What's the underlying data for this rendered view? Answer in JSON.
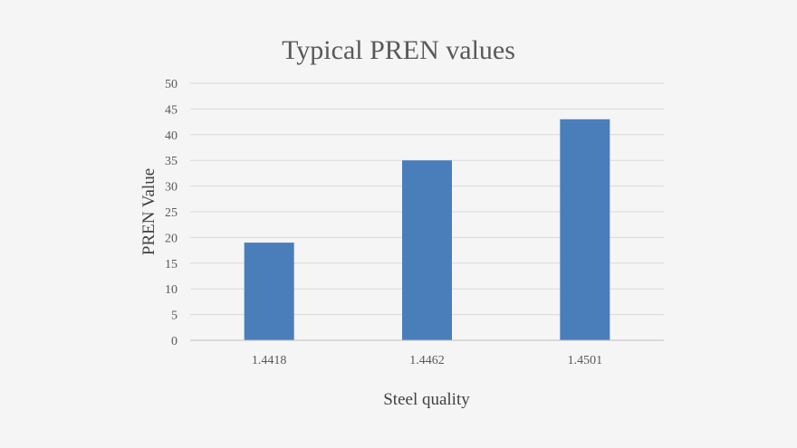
{
  "chart_data": {
    "type": "bar",
    "title": "Typical PREN values",
    "xlabel": "Steel quality",
    "ylabel": "PREN Value",
    "categories": [
      "1.4418",
      "1.4462",
      "1.4501"
    ],
    "values": [
      19,
      35,
      43
    ],
    "ylim": [
      0,
      50
    ],
    "yticks": [
      "0",
      "5",
      "10",
      "15",
      "20",
      "25",
      "30",
      "35",
      "40",
      "45",
      "50"
    ],
    "grid": true,
    "bar_color": "#4a7ebb"
  }
}
